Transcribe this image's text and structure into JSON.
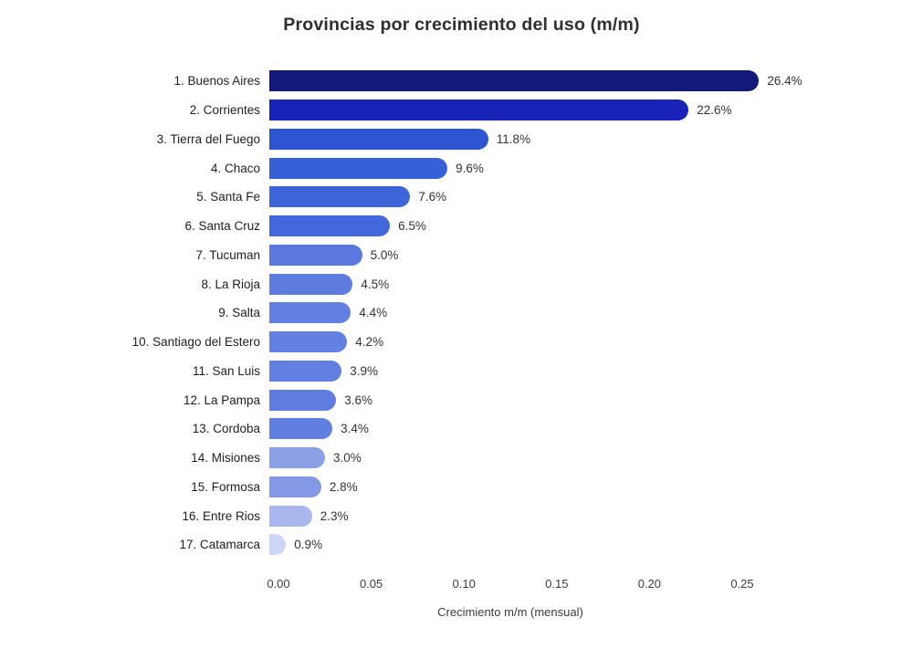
{
  "chart": {
    "title": "Provincias por crecimiento del uso (m/m)",
    "xlabel": "Crecimiento m/m (mensual)"
  },
  "chart_data": {
    "type": "bar",
    "orientation": "horizontal",
    "title": "Provincias por crecimiento del uso (m/m)",
    "xlabel": "Crecimiento m/m (mensual)",
    "ylabel": "",
    "xlim": [
      0,
      0.27
    ],
    "x_ticks": [
      0.0,
      0.05,
      0.1,
      0.15,
      0.2,
      0.25
    ],
    "x_tick_labels": [
      "0.00",
      "0.05",
      "0.10",
      "0.15",
      "0.20",
      "0.25"
    ],
    "grid": false,
    "legend": false,
    "categories": [
      "1. Buenos Aires",
      "2. Corrientes",
      "3. Tierra del Fuego",
      "4. Chaco",
      "5. Santa Fe",
      "6. Santa Cruz",
      "7. Tucuman",
      "8. La Rioja",
      "9. Salta",
      "10. Santiago del Estero",
      "11. San Luis",
      "12. La Pampa",
      "13. Cordoba",
      "14. Misiones",
      "15. Formosa",
      "16. Entre Rios",
      "17. Catamarca"
    ],
    "values": [
      0.264,
      0.226,
      0.118,
      0.096,
      0.076,
      0.065,
      0.05,
      0.045,
      0.044,
      0.042,
      0.039,
      0.036,
      0.034,
      0.03,
      0.028,
      0.023,
      0.009
    ],
    "value_labels": [
      "26.4%",
      "22.6%",
      "11.8%",
      "9.6%",
      "7.6%",
      "6.5%",
      "5.0%",
      "4.5%",
      "4.4%",
      "4.2%",
      "3.9%",
      "3.6%",
      "3.4%",
      "3.0%",
      "2.8%",
      "2.3%",
      "0.9%"
    ],
    "bar_colors": [
      "#131979",
      "#1A23B8",
      "#2E54D2",
      "#3560D8",
      "#3E64DA",
      "#4368DB",
      "#5A78DE",
      "#5E7CE0",
      "#6280E1",
      "#6381E1",
      "#6180E1",
      "#5F7DE0",
      "#617FE1",
      "#8CA0E8",
      "#8498E6",
      "#A9B7EE",
      "#CDD6F4"
    ]
  }
}
